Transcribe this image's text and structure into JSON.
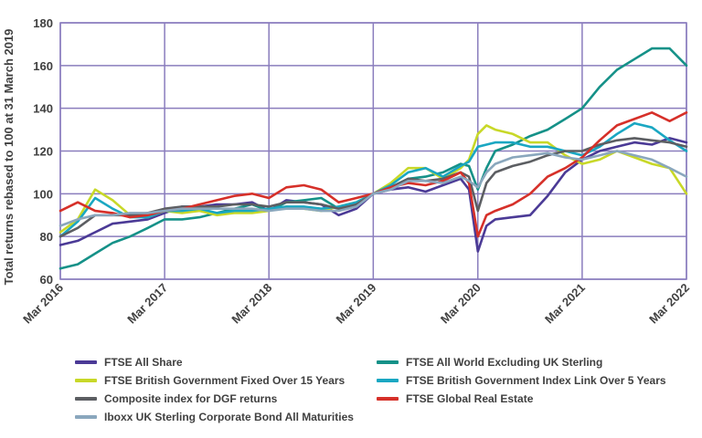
{
  "chart_data": {
    "type": "line",
    "ylabel": "Total returns rebased to 100 at 31 March 2019",
    "xlabel": "",
    "ylim": [
      60,
      180
    ],
    "yticks": [
      60,
      80,
      100,
      120,
      140,
      160,
      180
    ],
    "x_range": [
      "2016-03-31",
      "2022-03-31"
    ],
    "xticks": [
      {
        "label": "Mar 2016",
        "date": "2016-03-31"
      },
      {
        "label": "Mar 2017",
        "date": "2017-03-31"
      },
      {
        "label": "Mar 2018",
        "date": "2018-03-31"
      },
      {
        "label": "Mar 2019",
        "date": "2019-03-31"
      },
      {
        "label": "Mar 2020",
        "date": "2020-03-31"
      },
      {
        "label": "Mar 2021",
        "date": "2021-03-31"
      },
      {
        "label": "Mar 2022",
        "date": "2022-03-31"
      }
    ],
    "grid": true,
    "legend_position": "bottom",
    "x": [
      "2016-03-31",
      "2016-05-31",
      "2016-07-31",
      "2016-09-30",
      "2016-11-30",
      "2017-01-31",
      "2017-03-31",
      "2017-05-31",
      "2017-07-31",
      "2017-09-30",
      "2017-11-30",
      "2018-01-31",
      "2018-03-31",
      "2018-05-31",
      "2018-07-31",
      "2018-09-30",
      "2018-11-30",
      "2019-01-31",
      "2019-03-31",
      "2019-05-31",
      "2019-07-31",
      "2019-09-30",
      "2019-11-30",
      "2020-01-31",
      "2020-02-29",
      "2020-03-31",
      "2020-04-30",
      "2020-05-31",
      "2020-07-31",
      "2020-09-30",
      "2020-11-30",
      "2021-01-31",
      "2021-03-31",
      "2021-05-31",
      "2021-07-31",
      "2021-09-30",
      "2021-11-30",
      "2022-01-31",
      "2022-03-31"
    ],
    "series": [
      {
        "name": "FTSE All Share",
        "color": "#4b3a96",
        "values": [
          76,
          78,
          82,
          86,
          87,
          88,
          91,
          94,
          94,
          95,
          95,
          96,
          92,
          97,
          96,
          95,
          90,
          93,
          100,
          102,
          103,
          101,
          104,
          107,
          102,
          73,
          85,
          88,
          89,
          90,
          99,
          110,
          116,
          120,
          122,
          124,
          123,
          126,
          124
        ]
      },
      {
        "name": "FTSE All World Excluding UK Sterling",
        "color": "#159188",
        "values": [
          65,
          67,
          72,
          77,
          80,
          84,
          88,
          88,
          89,
          91,
          93,
          95,
          92,
          96,
          97,
          98,
          93,
          95,
          100,
          103,
          107,
          108,
          110,
          114,
          113,
          102,
          112,
          120,
          123,
          127,
          130,
          135,
          140,
          150,
          158,
          163,
          168,
          168,
          160
        ]
      },
      {
        "name": "FTSE British Government Fixed Over 15 Years",
        "color": "#c8d828",
        "values": [
          82,
          88,
          102,
          97,
          90,
          89,
          92,
          91,
          92,
          90,
          91,
          91,
          92,
          94,
          93,
          92,
          94,
          96,
          100,
          105,
          112,
          112,
          107,
          112,
          116,
          128,
          132,
          130,
          128,
          124,
          124,
          118,
          114,
          116,
          120,
          117,
          114,
          112,
          100
        ]
      },
      {
        "name": "FTSE British Government Index Link Over 5 Years",
        "color": "#1aa7c2",
        "values": [
          80,
          87,
          98,
          93,
          89,
          89,
          92,
          92,
          93,
          91,
          92,
          92,
          93,
          94,
          94,
          93,
          94,
          96,
          100,
          104,
          110,
          112,
          108,
          113,
          115,
          122,
          123,
          124,
          124,
          122,
          122,
          120,
          118,
          122,
          128,
          133,
          131,
          125,
          120
        ]
      },
      {
        "name": "Composite index for DGF returns",
        "color": "#5c5e62",
        "values": [
          80,
          84,
          90,
          90,
          90,
          91,
          93,
          94,
          94,
          94,
          95,
          95,
          94,
          96,
          96,
          95,
          93,
          95,
          100,
          103,
          107,
          106,
          107,
          110,
          108,
          92,
          105,
          110,
          113,
          115,
          118,
          120,
          120,
          123,
          125,
          126,
          125,
          124,
          122
        ]
      },
      {
        "name": "FTSE Global Real Estate",
        "color": "#d63029",
        "values": [
          92,
          96,
          92,
          91,
          89,
          90,
          92,
          93,
          95,
          97,
          99,
          100,
          98,
          103,
          104,
          102,
          96,
          98,
          100,
          103,
          105,
          104,
          106,
          110,
          105,
          80,
          90,
          92,
          95,
          100,
          108,
          112,
          117,
          125,
          132,
          135,
          138,
          134,
          138
        ]
      },
      {
        "name": "Iboxx UK Sterling Corporate Bond All Maturities",
        "color": "#8aa7bd",
        "values": [
          85,
          88,
          90,
          90,
          91,
          91,
          92,
          93,
          93,
          93,
          93,
          93,
          92,
          93,
          93,
          92,
          92,
          94,
          100,
          102,
          106,
          106,
          105,
          108,
          106,
          103,
          110,
          114,
          117,
          118,
          119,
          117,
          116,
          118,
          120,
          118,
          116,
          112,
          108
        ]
      }
    ]
  },
  "legend": [
    {
      "label": "FTSE All Share",
      "color": "#4b3a96"
    },
    {
      "label": "FTSE All World Excluding UK Sterling",
      "color": "#159188"
    },
    {
      "label": "FTSE British Government Fixed Over 15 Years",
      "color": "#c8d828"
    },
    {
      "label": "FTSE British Government Index Link Over 5 Years",
      "color": "#1aa7c2"
    },
    {
      "label": "Composite index for DGF returns",
      "color": "#5c5e62"
    },
    {
      "label": "FTSE Global Real Estate",
      "color": "#d63029"
    },
    {
      "label": "Iboxx UK Sterling Corporate Bond All Maturities",
      "color": "#8aa7bd"
    }
  ],
  "colors": {
    "grid": "#8a7dbd",
    "text": "#404040"
  }
}
